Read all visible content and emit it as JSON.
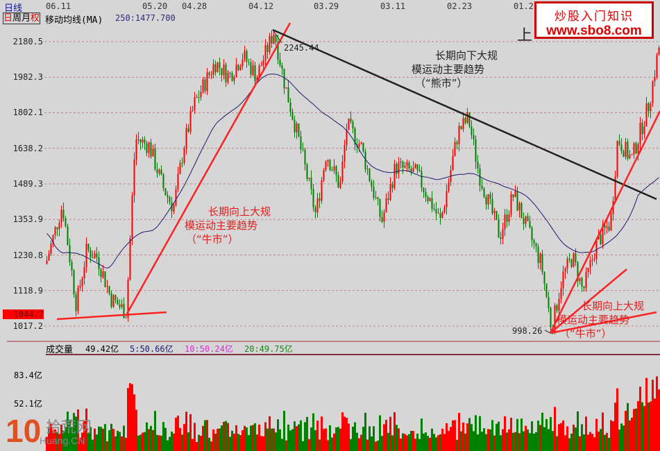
{
  "header": {
    "period": "日线",
    "tabs": [
      "日",
      "周",
      "月",
      "权"
    ],
    "indicator": "移动均线(MA)",
    "ma_value": "250:1477.700"
  },
  "x_labels": [
    "06.11",
    "05.20",
    "04.28",
    "04.12",
    "03.29",
    "03.11",
    "02.23",
    "01.2"
  ],
  "price_ticks": [
    "2180.5",
    "1982.3",
    "1802.1",
    "1638.2",
    "1489.3",
    "1353.9",
    "1230.8",
    "1118.9",
    "1017.2"
  ],
  "current_price": "1044.7",
  "annotations": {
    "peak": "2245.44",
    "trough": "998.26",
    "partial_title": "上",
    "bear_1": "长期向下大规",
    "bear_2": "模运动主要趋势",
    "bear_3": "（“熊市”）",
    "bull_1": "长期向上大规",
    "bull_2": "模运动主要趋势",
    "bull_3": "（“牛市”）",
    "bull2_1": "长期向上大规",
    "bull2_2": "模运动主要趋势",
    "bull2_3": "（“牛市”）"
  },
  "volume": {
    "label": "成交量",
    "value": "49.42亿",
    "ma5": "5:50.66亿",
    "ma10": "10:50.24亿",
    "ma20": "20:49.75亿",
    "ticks": [
      "83.4亿",
      "52.1亿"
    ]
  },
  "watermark": {
    "line1": "炒股入门知识",
    "line2": "www.sbo8.com"
  },
  "logo": {
    "num": "10",
    "name": "拾荒网",
    "domain": "Huang.CN"
  },
  "colors": {
    "up": "#ff0000",
    "down": "#008000",
    "ma": "#1a1a6e",
    "grid": "#b07070",
    "trend_bull": "#ff2020",
    "trend_bear": "#202020"
  },
  "chart_data": {
    "type": "candlestick",
    "scale": "log",
    "ylim": [
      1000,
      2250
    ],
    "close_path": [
      1202,
      1409,
      1076,
      1248,
      1225,
      1096,
      1056,
      1681,
      1650,
      1476,
      1396,
      1650,
      1844,
      2063,
      1987,
      2101,
      1987,
      2243,
      1950,
      1681,
      1370,
      1619,
      1476,
      1745,
      1650,
      1345,
      1560,
      1532,
      1345,
      1712,
      1777,
      1532,
      1296,
      1448,
      1319,
      1202,
      1008,
      1159,
      1225,
      1116,
      1272,
      1345,
      1681,
      1590,
      1844,
      2180
    ],
    "ma_period": 250,
    "volume_ticks": [
      83.4,
      52.1
    ]
  }
}
